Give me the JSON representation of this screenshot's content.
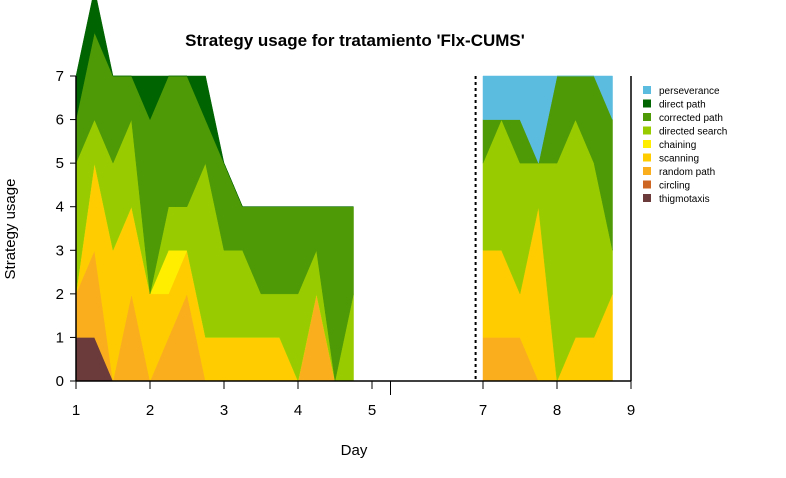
{
  "chart_data": {
    "type": "area",
    "title": "Strategy usage for tratamiento 'Flx-CUMS'",
    "xlabel": "Day",
    "ylabel": "Strategy usage",
    "ylim": [
      0,
      7
    ],
    "y_ticks": [
      "0",
      "1",
      "2",
      "3",
      "4",
      "5",
      "6",
      "7"
    ],
    "x_ticks": [
      {
        "label": "1",
        "x": 1
      },
      {
        "label": "2",
        "x": 2
      },
      {
        "label": "3",
        "x": 3
      },
      {
        "label": "4",
        "x": 4
      },
      {
        "label": "5",
        "x": 5
      },
      {
        "label": "7",
        "x": 6.5
      },
      {
        "label": "8",
        "x": 7.5
      },
      {
        "label": "9",
        "x": 8.5
      }
    ],
    "xlim": [
      1,
      8.5
    ],
    "break_marks": [
      5.25
    ],
    "separator_x": 6.4,
    "legend_position": "right",
    "segments": [
      {
        "x": [
          1,
          1.25,
          1.5,
          1.75,
          2,
          2.25,
          2.5,
          2.75,
          3,
          3.25,
          3.5,
          3.75,
          4,
          4.25,
          4.5,
          4.75
        ],
        "series": {
          "perseverance": [
            0,
            0,
            0,
            0,
            0,
            0,
            0,
            0,
            0,
            0,
            0,
            0,
            0,
            0,
            0,
            0
          ],
          "direct path": [
            1,
            1,
            0,
            0,
            1,
            0,
            0,
            1,
            0,
            0,
            0,
            0,
            0,
            0,
            0,
            0
          ],
          "corrected path": [
            1,
            2,
            2,
            1,
            4,
            3,
            3,
            1,
            2,
            1,
            2,
            2,
            2,
            1,
            4,
            2
          ],
          "directed search": [
            3,
            1,
            2,
            2,
            0,
            1,
            1,
            4,
            2,
            2,
            1,
            1,
            2,
            1,
            0,
            2
          ],
          "chaining": [
            0,
            0,
            0,
            0,
            0,
            1,
            0,
            0,
            0,
            0,
            0,
            0,
            0,
            0,
            0,
            0
          ],
          "scanning": [
            0,
            2,
            3,
            2,
            2,
            1,
            1,
            1,
            1,
            1,
            1,
            1,
            0,
            0,
            0,
            0
          ],
          "random path": [
            1,
            2,
            0,
            2,
            0,
            1,
            2,
            0,
            0,
            0,
            0,
            0,
            0,
            2,
            0,
            0
          ],
          "circling": [
            0,
            0,
            0,
            0,
            0,
            0,
            0,
            0,
            0,
            0,
            0,
            0,
            0,
            0,
            0,
            0
          ],
          "thigmotaxis": [
            1,
            1,
            0,
            0,
            0,
            0,
            0,
            0,
            0,
            0,
            0,
            0,
            0,
            0,
            0,
            0
          ]
        }
      },
      {
        "x": [
          6.5,
          6.75,
          7,
          7.25,
          7.5,
          7.75,
          8,
          8.25
        ],
        "series": {
          "perseverance": [
            1,
            1,
            1,
            2,
            0,
            0,
            0,
            1
          ],
          "direct path": [
            0,
            0,
            0,
            0,
            0,
            0,
            0,
            0
          ],
          "corrected path": [
            1,
            0,
            1,
            0,
            2,
            1,
            2,
            3
          ],
          "directed search": [
            2,
            3,
            3,
            1,
            5,
            5,
            4,
            1
          ],
          "chaining": [
            0,
            0,
            0,
            0,
            0,
            0,
            0,
            0
          ],
          "scanning": [
            2,
            2,
            1,
            4,
            0,
            1,
            1,
            2
          ],
          "random path": [
            1,
            1,
            1,
            0,
            0,
            0,
            0,
            0
          ],
          "circling": [
            0,
            0,
            0,
            0,
            0,
            0,
            0,
            0
          ],
          "thigmotaxis": [
            0,
            0,
            0,
            0,
            0,
            0,
            0,
            0
          ]
        }
      }
    ],
    "legend": [
      {
        "name": "perseverance",
        "color": "#5BBCE0"
      },
      {
        "name": "direct path",
        "color": "#006400"
      },
      {
        "name": "corrected path",
        "color": "#4E9A06"
      },
      {
        "name": "directed search",
        "color": "#99CC00"
      },
      {
        "name": "chaining",
        "color": "#FFEE00"
      },
      {
        "name": "scanning",
        "color": "#FFCC00"
      },
      {
        "name": "random path",
        "color": "#FAAE1E"
      },
      {
        "name": "circling",
        "color": "#CC6622"
      },
      {
        "name": "thigmotaxis",
        "color": "#6B3A3A"
      }
    ],
    "stack_order": [
      "thigmotaxis",
      "circling",
      "random path",
      "scanning",
      "chaining",
      "directed search",
      "corrected path",
      "direct path",
      "perseverance"
    ]
  }
}
